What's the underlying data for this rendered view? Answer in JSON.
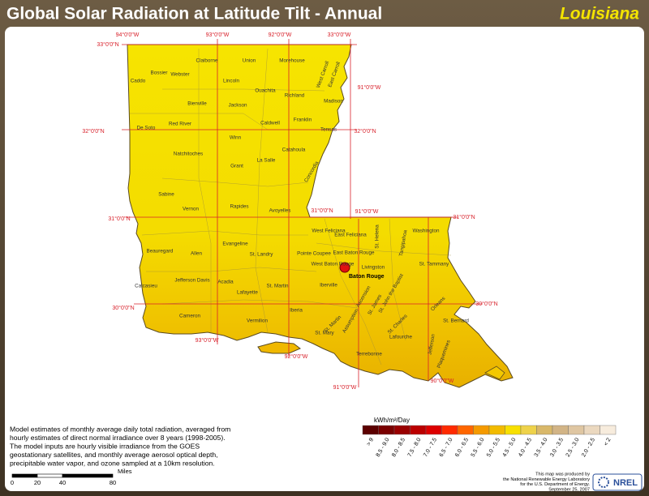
{
  "header": {
    "title": "Global Solar Radiation at Latitude Tilt - Annual",
    "state": "Louisiana"
  },
  "graticule": [
    "94°0'0\"W",
    "93°0'0\"W",
    "92°0'0\"W",
    "33°0'0\"W",
    "33°0'0\"N",
    "91°0'0\"W",
    "32°0'0\"N",
    "32°0'0\"N",
    "31°0'0\"N",
    "91°0'0\"W",
    "31°0'0\"N",
    "31°0'0\"N",
    "30°0'0\"N",
    "30°0'0\"N",
    "93°0'0\"W",
    "92°0'0\"W",
    "91°0'0\"W",
    "90°0'0\"W"
  ],
  "parishes": [
    "Caddo",
    "Bossier",
    "Webster",
    "Claiborne",
    "Union",
    "Morehouse",
    "West Carroll",
    "East Carroll",
    "Lincoln",
    "Ouachita",
    "Richland",
    "Madison",
    "Bienville",
    "Jackson",
    "De Soto",
    "Red River",
    "Caldwell",
    "Franklin",
    "Tensas",
    "Winn",
    "Natchitoches",
    "Catahoula",
    "Grant",
    "La Salle",
    "Sabine",
    "Concordia",
    "Vernon",
    "Rapides",
    "Avoyelles",
    "West Feliciana",
    "East Feliciana",
    "St. Helena",
    "Tangipahoa",
    "Washington",
    "Pointe Coupee",
    "East Baton Rouge",
    "West Baton Rouge",
    "Livingston",
    "St. Tammany",
    "Beauregard",
    "Allen",
    "Evangeline",
    "St. Landry",
    "Jefferson Davis",
    "Acadia",
    "Lafayette",
    "St. Martin",
    "Iberville",
    "Ascension",
    "St. James",
    "St. John the Baptist",
    "Orleans",
    "Calcasieu",
    "Cameron",
    "Vermilion",
    "Iberia",
    "St. Martin",
    "Assumption",
    "St. Charles",
    "St. Bernard",
    "St. Mary",
    "Lafourche",
    "Terrebonne",
    "Jefferson",
    "Plaquemines"
  ],
  "city": "Baton Rouge",
  "legend": {
    "title": "kWh/m²/Day",
    "classes": [
      {
        "label": "> 9",
        "color": "#5c0000"
      },
      {
        "label": "8.5 - 9.0",
        "color": "#7a0000"
      },
      {
        "label": "8.0 - 8.5",
        "color": "#990000"
      },
      {
        "label": "7.5 - 8.0",
        "color": "#bb0000"
      },
      {
        "label": "7.0 - 7.5",
        "color": "#dd0000"
      },
      {
        "label": "6.5 - 7.0",
        "color": "#ff2a00"
      },
      {
        "label": "6.0 - 6.5",
        "color": "#ff6600"
      },
      {
        "label": "5.5 - 6.0",
        "color": "#f59a00"
      },
      {
        "label": "5.0 - 5.5",
        "color": "#f2bb00"
      },
      {
        "label": "4.5 - 5.0",
        "color": "#f8e000"
      },
      {
        "label": "4.0 - 4.5",
        "color": "#eed24a"
      },
      {
        "label": "3.5 - 4.0",
        "color": "#d9b86a"
      },
      {
        "label": "3.0 - 3.5",
        "color": "#d2b486"
      },
      {
        "label": "2.5 - 3.0",
        "color": "#dfc6a2"
      },
      {
        "label": "2.0 - 2.5",
        "color": "#ebd8bf"
      },
      {
        "label": "< 2",
        "color": "#f7ecdd"
      }
    ]
  },
  "description": [
    "Model estimates of monthly average daily total radiation, averaged from",
    "hourly estimates of direct normal irradiance over 8 years (1998-2005).",
    "The model inputs are hourly visible irradiance from the GOES",
    "geostationary satellites, and monthly average aerosol optical depth,",
    "precipitable water vapor, and ozone sampled at a 10km resolution."
  ],
  "scale_bar": {
    "unit": "Miles",
    "ticks": [
      0,
      20,
      40,
      80
    ]
  },
  "credits": [
    "This map was produced by",
    "the National Renewable Energy Laboratory",
    "for the U.S. Department of Energy.",
    "September 25, 2007"
  ],
  "logo": "NREL"
}
